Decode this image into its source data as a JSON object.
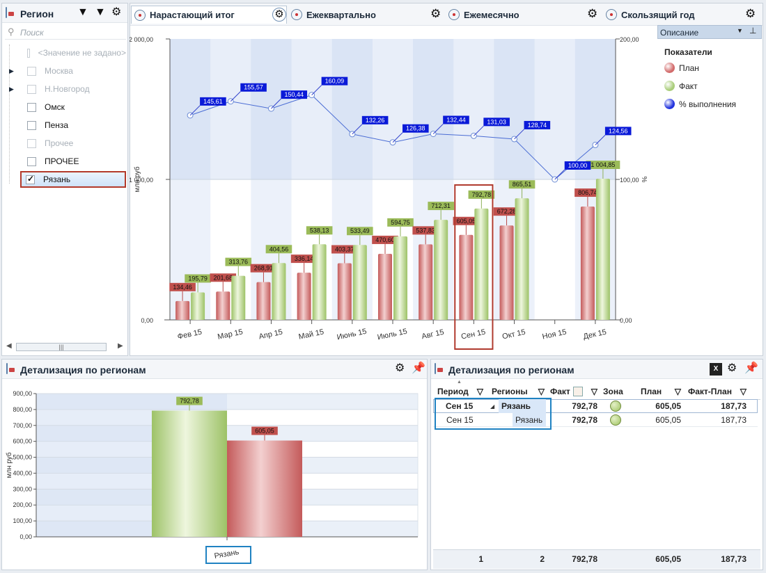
{
  "region_panel": {
    "title": "Регион",
    "search_placeholder": "Поиск",
    "items": [
      {
        "label": "<Значение не задано>",
        "checked": false,
        "dim": true,
        "expandable": false
      },
      {
        "label": "Москва",
        "checked": false,
        "dim": true,
        "expandable": true
      },
      {
        "label": "Н.Новгород",
        "checked": false,
        "dim": true,
        "expandable": true
      },
      {
        "label": "Омск",
        "checked": false,
        "dim": false,
        "expandable": false
      },
      {
        "label": "Пенза",
        "checked": false,
        "dim": false,
        "expandable": false
      },
      {
        "label": "Прочее",
        "checked": false,
        "dim": true,
        "expandable": false
      },
      {
        "label": "ПРОЧЕЕ",
        "checked": false,
        "dim": false,
        "expandable": false
      },
      {
        "label": "Рязань",
        "checked": true,
        "dim": false,
        "expandable": false
      }
    ]
  },
  "tabs": [
    "Нарастающий итог",
    "Ежеквартально",
    "Ежемесячно",
    "Скользящий год"
  ],
  "legend_panel": {
    "header": "Описание",
    "title": "Показатели",
    "items": [
      {
        "label": "План",
        "color": "#d26b6b"
      },
      {
        "label": "Факт",
        "color": "#a9cd7a"
      },
      {
        "label": "% выполнения",
        "color": "#2233dd"
      }
    ]
  },
  "chart_data": [
    {
      "type": "bar",
      "categories": [
        "Фев 15",
        "Мар 15",
        "Апр 15",
        "Май 15",
        "Июнь 15",
        "Июль 15",
        "Авг 15",
        "Сен 15",
        "Окт 15",
        "Ноя 15",
        "Дек 15"
      ],
      "series": [
        {
          "name": "План",
          "type": "bar",
          "values": [
            134.46,
            201.68,
            268.91,
            336.14,
            403.37,
            470.6,
            537.83,
            605.05,
            672.28,
            null,
            806.74
          ],
          "labels": [
            "134,46",
            "201,68",
            "268,91",
            "336,14",
            "403,37",
            "470,60",
            "537,83",
            "605,05",
            "672,28",
            "",
            "806,74"
          ]
        },
        {
          "name": "Факт",
          "type": "bar",
          "values": [
            195.79,
            313.76,
            404.56,
            538.13,
            533.49,
            594.75,
            712.31,
            792.78,
            865.51,
            null,
            1004.85
          ],
          "labels": [
            "195,79",
            "313,76",
            "404,56",
            "538,13",
            "533,49",
            "594,75",
            "712,31",
            "792,78",
            "865,51",
            "",
            "1 004,85"
          ]
        },
        {
          "name": "% выполнения",
          "type": "line",
          "axis": "right",
          "values": [
            145.61,
            155.57,
            150.44,
            160.09,
            132.26,
            126.38,
            132.44,
            131.03,
            128.74,
            100.0,
            124.56
          ],
          "labels": [
            "145,61",
            "155,57",
            "150,44",
            "160,09",
            "132,26",
            "126,38",
            "132,44",
            "131,03",
            "128,74",
            "100,00",
            "124,56"
          ]
        }
      ],
      "ylabel": "млн руб",
      "y2label": "%",
      "ylim": [
        0,
        2000
      ],
      "y2lim": [
        0,
        200
      ],
      "yticks": [
        "0,00",
        "1 000,00",
        "2 000,00"
      ],
      "y2ticks": [
        "0,00",
        "100,00",
        "200,00"
      ],
      "highlight_category": "Сен 15"
    },
    {
      "type": "bar",
      "categories": [
        "Рязань"
      ],
      "series": [
        {
          "name": "Факт",
          "values": [
            792.78
          ],
          "labels": [
            "792,78"
          ]
        },
        {
          "name": "План",
          "values": [
            605.05
          ],
          "labels": [
            "605,05"
          ]
        }
      ],
      "ylabel": "млн руб",
      "ylim": [
        0,
        900
      ],
      "yticks": [
        "0,00",
        "100,00",
        "200,00",
        "300,00",
        "400,00",
        "500,00",
        "600,00",
        "700,00",
        "800,00",
        "900,00"
      ]
    }
  ],
  "detail_left": {
    "title": "Детализация по регионам"
  },
  "detail_right": {
    "title": "Детализация по регионам",
    "columns": [
      "Период",
      "Регионы",
      "Факт",
      "Зона",
      "План",
      "Факт-План"
    ],
    "rows": [
      {
        "period": "Сен 15",
        "region": "Рязань",
        "fact": "792,78",
        "plan": "605,05",
        "diff": "187,73",
        "zone_color": "#9dc25e"
      },
      {
        "period": "Сен 15",
        "region": "Рязань",
        "fact": "792,78",
        "plan": "605,05",
        "diff": "187,73",
        "zone_color": "#9dc25e"
      }
    ],
    "totals": {
      "period": "1",
      "region": "2",
      "fact": "792,78",
      "plan": "605,05",
      "diff": "187,73"
    }
  }
}
